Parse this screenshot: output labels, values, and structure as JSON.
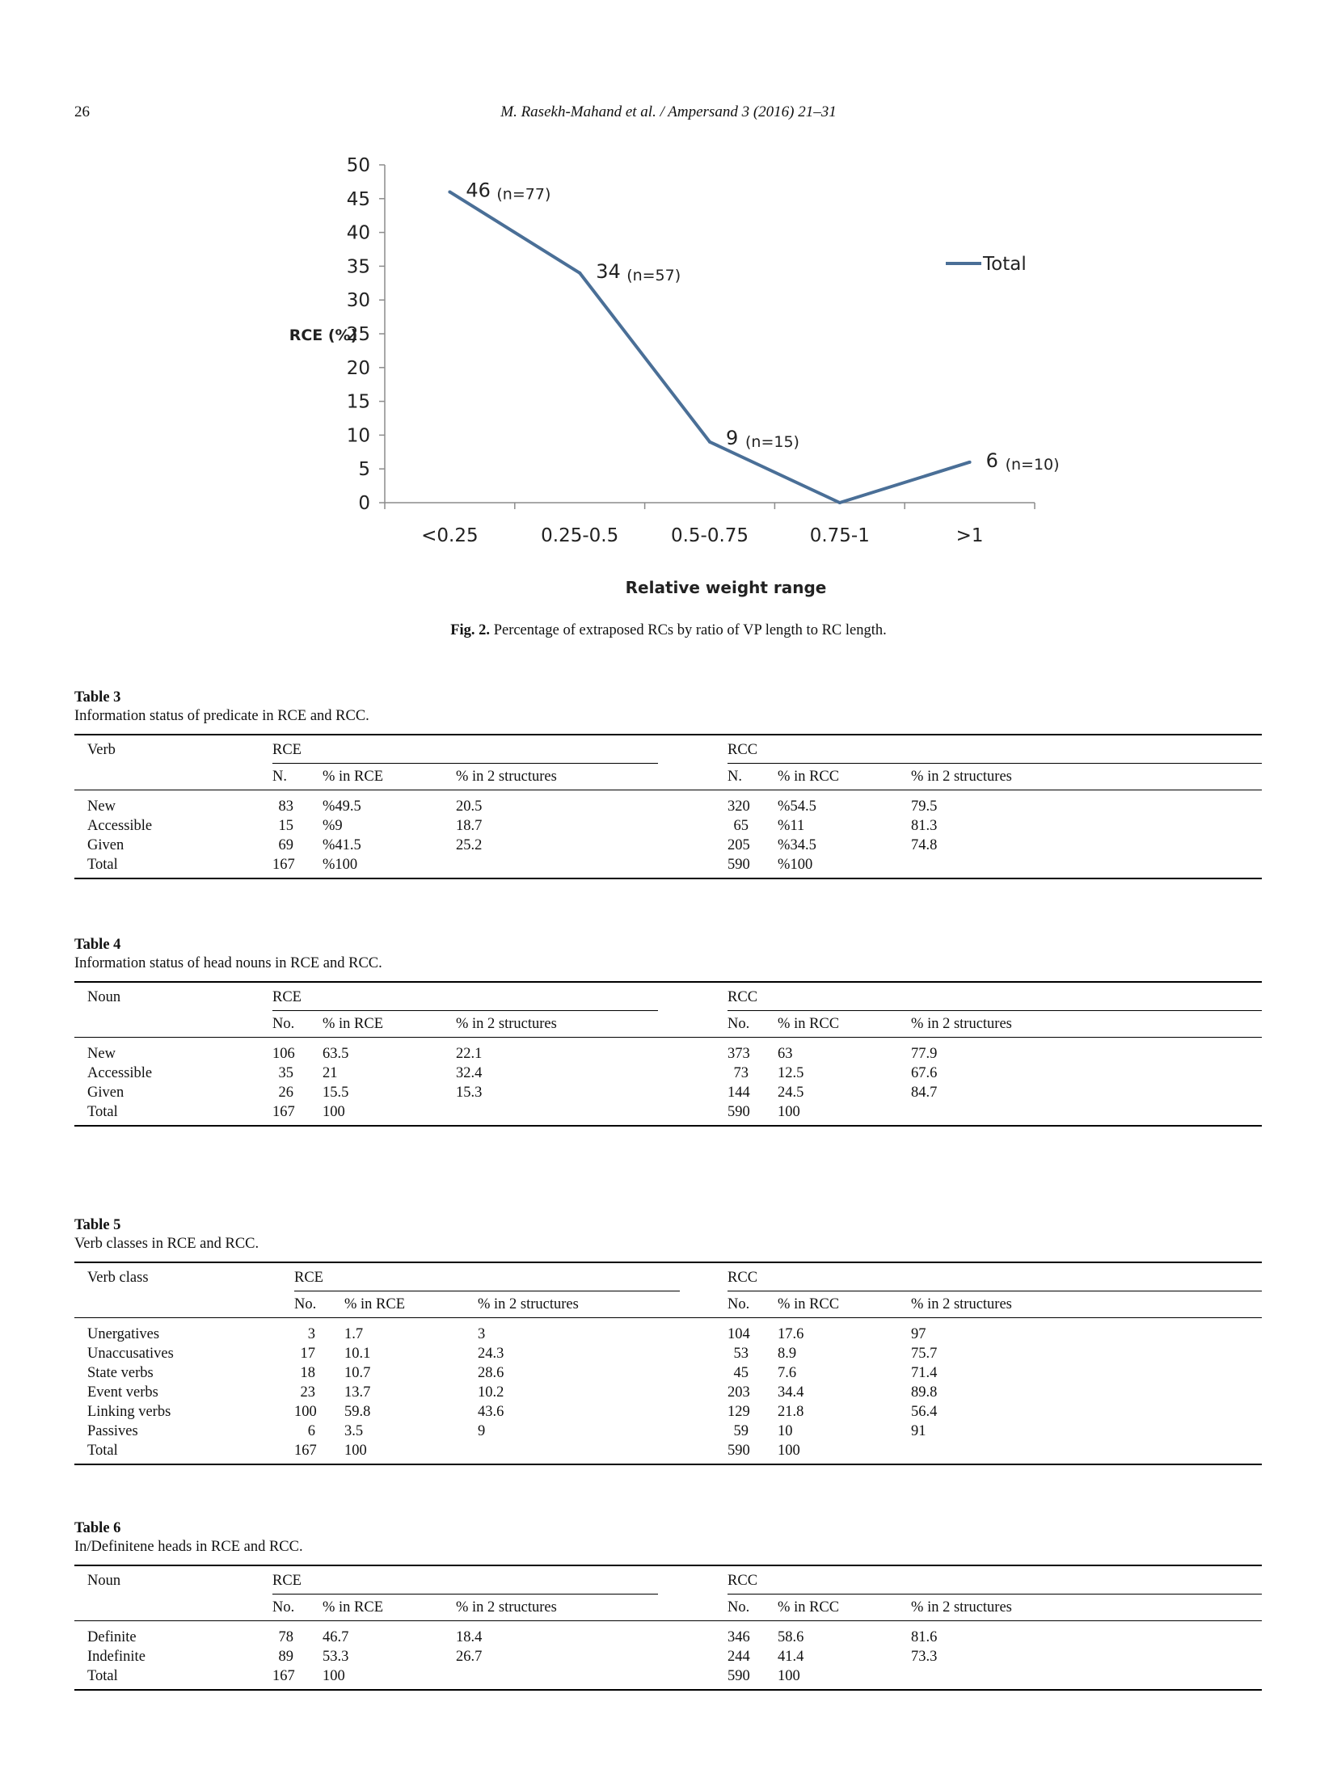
{
  "header": {
    "page_number": "26",
    "running_title": "M. Rasekh-Mahand et al. / Ampersand 3 (2016) 21–31"
  },
  "figure": {
    "caption_label": "Fig. 2.",
    "caption_text": "Percentage of extraposed RCs by ratio of VP length to RC length.",
    "chart_data": {
      "type": "line",
      "title": "",
      "xlabel": "Relative weight range",
      "ylabel": "RCE (%)",
      "categories": [
        "<0.25",
        "0.25-0.5",
        "0.5-0.75",
        "0.75-1",
        ">1"
      ],
      "ylim": [
        0,
        50
      ],
      "yticks": [
        0,
        5,
        10,
        15,
        20,
        25,
        30,
        35,
        40,
        45,
        50
      ],
      "series": [
        {
          "name": "Total",
          "color": "#4a6f97",
          "points": [
            {
              "value": 46,
              "label": "46",
              "n": "(n=77)"
            },
            {
              "value": 34,
              "label": "34",
              "n": "(n=57)"
            },
            {
              "value": 9,
              "label": "9",
              "n": "(n=15)"
            },
            {
              "value": 0,
              "label": "",
              "n": ""
            },
            {
              "value": 6,
              "label": "6",
              "n": "(n=10)"
            }
          ]
        }
      ],
      "legend_position": "right",
      "grid": false
    }
  },
  "tables": [
    {
      "title": "Table 3",
      "caption": "Information status of predicate in RCE and RCC.",
      "row_header": "Verb",
      "groups": [
        "RCE",
        "RCC"
      ],
      "subheaders": [
        "N.",
        "% in RCE",
        "% in 2 structures",
        "N.",
        "% in RCC",
        "% in 2 structures"
      ],
      "rows": [
        [
          "New",
          "83",
          "%49.5",
          "20.5",
          "320",
          "%54.5",
          "79.5"
        ],
        [
          "Accessible",
          "15",
          "%9",
          "18.7",
          "65",
          "%11",
          "81.3"
        ],
        [
          "Given",
          "69",
          "%41.5",
          "25.2",
          "205",
          "%34.5",
          "74.8"
        ],
        [
          "Total",
          "167",
          "%100",
          "",
          "590",
          "%100",
          ""
        ]
      ]
    },
    {
      "title": "Table 4",
      "caption": "Information status of head nouns in RCE and RCC.",
      "row_header": "Noun",
      "groups": [
        "RCE",
        "RCC"
      ],
      "subheaders": [
        "No.",
        "% in RCE",
        "% in 2 structures",
        "No.",
        "% in RCC",
        "% in 2 structures"
      ],
      "rows": [
        [
          "New",
          "106",
          "63.5",
          "22.1",
          "373",
          "63",
          "77.9"
        ],
        [
          "Accessible",
          "35",
          "21",
          "32.4",
          "73",
          "12.5",
          "67.6"
        ],
        [
          "Given",
          "26",
          "15.5",
          "15.3",
          "144",
          "24.5",
          "84.7"
        ],
        [
          "Total",
          "167",
          "100",
          "",
          "590",
          "100",
          ""
        ]
      ]
    },
    {
      "title": "Table 5",
      "caption": "Verb classes in RCE and RCC.",
      "row_header": "Verb class",
      "groups": [
        "RCE",
        "RCC"
      ],
      "subheaders": [
        "No.",
        "% in RCE",
        "% in 2 structures",
        "No.",
        "% in RCC",
        "% in 2 structures"
      ],
      "rows": [
        [
          "Unergatives",
          "3",
          "1.7",
          "3",
          "104",
          "17.6",
          "97"
        ],
        [
          "Unaccusatives",
          "17",
          "10.1",
          "24.3",
          "53",
          "8.9",
          "75.7"
        ],
        [
          "State verbs",
          "18",
          "10.7",
          "28.6",
          "45",
          "7.6",
          "71.4"
        ],
        [
          "Event verbs",
          "23",
          "13.7",
          "10.2",
          "203",
          "34.4",
          "89.8"
        ],
        [
          "Linking verbs",
          "100",
          "59.8",
          "43.6",
          "129",
          "21.8",
          "56.4"
        ],
        [
          "Passives",
          "6",
          "3.5",
          "9",
          "59",
          "10",
          "91"
        ],
        [
          "Total",
          "167",
          "100",
          "",
          "590",
          "100",
          ""
        ]
      ]
    },
    {
      "title": "Table 6",
      "caption": "In/Definitene heads in RCE and RCC.",
      "row_header": "Noun",
      "groups": [
        "RCE",
        "RCC"
      ],
      "subheaders": [
        "No.",
        "% in RCE",
        "% in 2 structures",
        "No.",
        "% in RCC",
        "% in 2 structures"
      ],
      "rows": [
        [
          "Definite",
          "78",
          "46.7",
          "18.4",
          "346",
          "58.6",
          "81.6"
        ],
        [
          "Indefinite",
          "89",
          "53.3",
          "26.7",
          "244",
          "41.4",
          "73.3"
        ],
        [
          "Total",
          "167",
          "100",
          "",
          "590",
          "100",
          ""
        ]
      ]
    }
  ]
}
